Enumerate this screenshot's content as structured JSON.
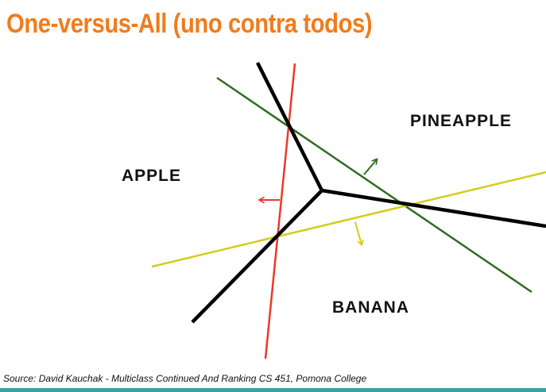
{
  "slide": {
    "title": "One-versus-All (uno contra todos)",
    "source": "Source: David Kauchak - Multiclass Continued And Ranking CS 451, Pomona College"
  },
  "diagram": {
    "class_labels": {
      "apple": "APPLE",
      "pineapple": "PINEAPPLE",
      "banana": "BANANA"
    },
    "colors": {
      "title": "#f07c1c",
      "apple_classifier": "#e8392a",
      "pineapple_classifier": "#2e6e1e",
      "banana_classifier": "#d4cc1a",
      "decision_boundary": "#000000",
      "bottom_bar": "#3aa3a8"
    }
  }
}
